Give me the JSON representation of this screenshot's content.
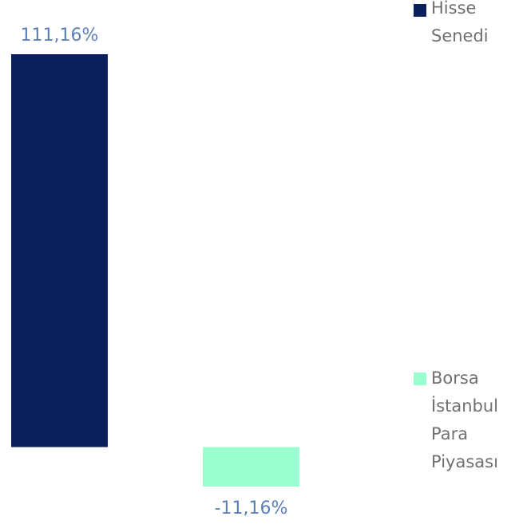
{
  "chart_data": {
    "type": "bar",
    "categories": [
      "Hisse Senedi",
      "Borsa İstanbul Para Piyasası"
    ],
    "values": [
      111.16,
      -11.16
    ],
    "data_labels": [
      "111,16%",
      "-11,16%"
    ],
    "colors": [
      "#0a1f5c",
      "#9affd0"
    ],
    "ylim": [
      -11.16,
      111.16
    ],
    "grid": false,
    "legend_position": "right",
    "legend": [
      {
        "lines": [
          "Hisse",
          "Senedi"
        ],
        "color": "#0a1f5c"
      },
      {
        "lines": [
          "Borsa",
          "İstanbul",
          "Para",
          "Piyasası"
        ],
        "color": "#9affd0"
      }
    ]
  }
}
